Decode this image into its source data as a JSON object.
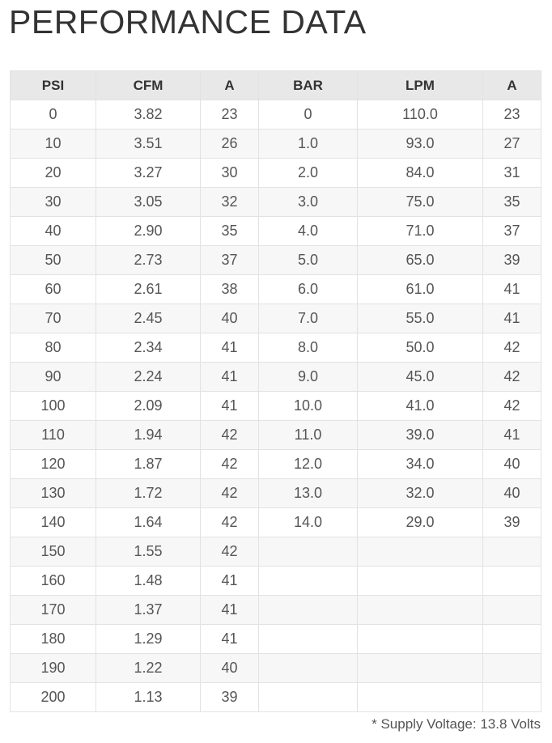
{
  "title": "PERFORMANCE DATA",
  "headers": [
    "PSI",
    "CFM",
    "A",
    "BAR",
    "LPM",
    "A"
  ],
  "rows": [
    [
      "0",
      "3.82",
      "23",
      "0",
      "110.0",
      "23"
    ],
    [
      "10",
      "3.51",
      "26",
      "1.0",
      "93.0",
      "27"
    ],
    [
      "20",
      "3.27",
      "30",
      "2.0",
      "84.0",
      "31"
    ],
    [
      "30",
      "3.05",
      "32",
      "3.0",
      "75.0",
      "35"
    ],
    [
      "40",
      "2.90",
      "35",
      "4.0",
      "71.0",
      "37"
    ],
    [
      "50",
      "2.73",
      "37",
      "5.0",
      "65.0",
      "39"
    ],
    [
      "60",
      "2.61",
      "38",
      "6.0",
      "61.0",
      "41"
    ],
    [
      "70",
      "2.45",
      "40",
      "7.0",
      "55.0",
      "41"
    ],
    [
      "80",
      "2.34",
      "41",
      "8.0",
      "50.0",
      "42"
    ],
    [
      "90",
      "2.24",
      "41",
      "9.0",
      "45.0",
      "42"
    ],
    [
      "100",
      "2.09",
      "41",
      "10.0",
      "41.0",
      "42"
    ],
    [
      "110",
      "1.94",
      "42",
      "11.0",
      "39.0",
      "41"
    ],
    [
      "120",
      "1.87",
      "42",
      "12.0",
      "34.0",
      "40"
    ],
    [
      "130",
      "1.72",
      "42",
      "13.0",
      "32.0",
      "40"
    ],
    [
      "140",
      "1.64",
      "42",
      "14.0",
      "29.0",
      "39"
    ],
    [
      "150",
      "1.55",
      "42",
      "",
      "",
      ""
    ],
    [
      "160",
      "1.48",
      "41",
      "",
      "",
      ""
    ],
    [
      "170",
      "1.37",
      "41",
      "",
      "",
      ""
    ],
    [
      "180",
      "1.29",
      "41",
      "",
      "",
      ""
    ],
    [
      "190",
      "1.22",
      "40",
      "",
      "",
      ""
    ],
    [
      "200",
      "1.13",
      "39",
      "",
      "",
      ""
    ]
  ],
  "footnote": "* Supply Voltage: 13.8 Volts"
}
